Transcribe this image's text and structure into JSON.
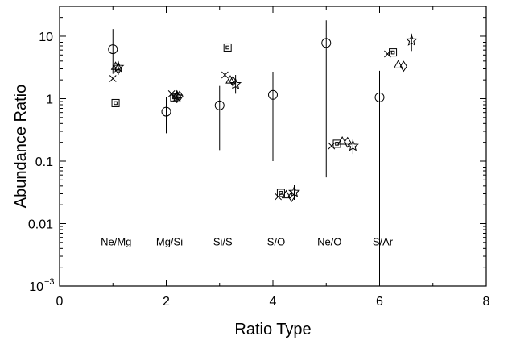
{
  "chart_data": {
    "type": "scatter",
    "xlabel": "Ratio Type",
    "ylabel": "Abundance Ratio",
    "xlim": [
      0,
      8
    ],
    "ylim": [
      0.001,
      30
    ],
    "yscale": "log",
    "grid": false,
    "x_ticks": [
      "0",
      "2",
      "4",
      "6",
      "8"
    ],
    "y_tick_values": [
      0.001,
      0.01,
      0.1,
      1,
      10
    ],
    "y_ticks": [
      "10",
      "0.01",
      "0.1",
      "1",
      "10"
    ],
    "y_tick_exponent": "−3",
    "annotations": [
      {
        "text": "Ne/Mg",
        "x": 1.0
      },
      {
        "text": "Mg/Si",
        "x": 2.0
      },
      {
        "text": "Si/S",
        "x": 3.0
      },
      {
        "text": "S/O",
        "x": 4.0
      },
      {
        "text": "Ne/O",
        "x": 5.0
      },
      {
        "text": "S/Ar",
        "x": 6.0
      }
    ],
    "annotation_y": 0.0045,
    "series": [
      {
        "marker": "circle",
        "points": [
          {
            "x": 1.0,
            "y": 6.2,
            "ylow": 2.5,
            "yhigh": 13
          },
          {
            "x": 2.0,
            "y": 0.62,
            "ylow": 0.28,
            "yhigh": 1.05
          },
          {
            "x": 3.0,
            "y": 0.78,
            "ylow": 0.15,
            "yhigh": 1.6
          },
          {
            "x": 4.0,
            "y": 1.15,
            "ylow": 0.1,
            "yhigh": 2.7
          },
          {
            "x": 5.0,
            "y": 7.8,
            "ylow": 0.055,
            "yhigh": 18
          },
          {
            "x": 6.0,
            "y": 1.05,
            "ylow": 0.001,
            "yhigh": 2.8
          }
        ]
      },
      {
        "marker": "cross",
        "points": [
          {
            "x": 1.0,
            "y": 2.1
          },
          {
            "x": 2.1,
            "y": 1.2
          },
          {
            "x": 3.1,
            "y": 2.4
          },
          {
            "x": 4.1,
            "y": 0.027
          },
          {
            "x": 5.1,
            "y": 0.175
          },
          {
            "x": 6.15,
            "y": 5.2
          }
        ]
      },
      {
        "marker": "square",
        "points": [
          {
            "x": 1.05,
            "y": 0.85
          },
          {
            "x": 2.15,
            "y": 1.05
          },
          {
            "x": 3.15,
            "y": 6.6
          },
          {
            "x": 4.15,
            "y": 0.031
          },
          {
            "x": 5.2,
            "y": 0.19
          },
          {
            "x": 6.25,
            "y": 5.5
          }
        ]
      },
      {
        "marker": "triangle",
        "points": [
          {
            "x": 1.05,
            "y": 3.3
          },
          {
            "x": 2.2,
            "y": 1.15
          },
          {
            "x": 3.2,
            "y": 2.0
          },
          {
            "x": 4.25,
            "y": 0.029
          },
          {
            "x": 5.3,
            "y": 0.21
          },
          {
            "x": 6.35,
            "y": 3.5
          }
        ]
      },
      {
        "marker": "diamond",
        "points": [
          {
            "x": 1.1,
            "y": 3.0
          },
          {
            "x": 2.25,
            "y": 1.1
          },
          {
            "x": 3.25,
            "y": 1.9
          },
          {
            "x": 4.35,
            "y": 0.027
          },
          {
            "x": 5.4,
            "y": 0.2
          },
          {
            "x": 6.45,
            "y": 3.3
          }
        ]
      },
      {
        "marker": "star",
        "points": [
          {
            "x": 1.1,
            "y": 3.2,
            "ylow": 2.4,
            "yhigh": 4.0
          },
          {
            "x": 2.2,
            "y": 1.08,
            "ylow": 0.85,
            "yhigh": 1.35
          },
          {
            "x": 3.3,
            "y": 1.7,
            "ylow": 1.2,
            "yhigh": 2.4
          },
          {
            "x": 4.4,
            "y": 0.032,
            "ylow": 0.024,
            "yhigh": 0.042
          },
          {
            "x": 5.5,
            "y": 0.175,
            "ylow": 0.13,
            "yhigh": 0.23
          },
          {
            "x": 6.6,
            "y": 8.5,
            "ylow": 5.8,
            "yhigh": 11
          }
        ]
      }
    ]
  }
}
